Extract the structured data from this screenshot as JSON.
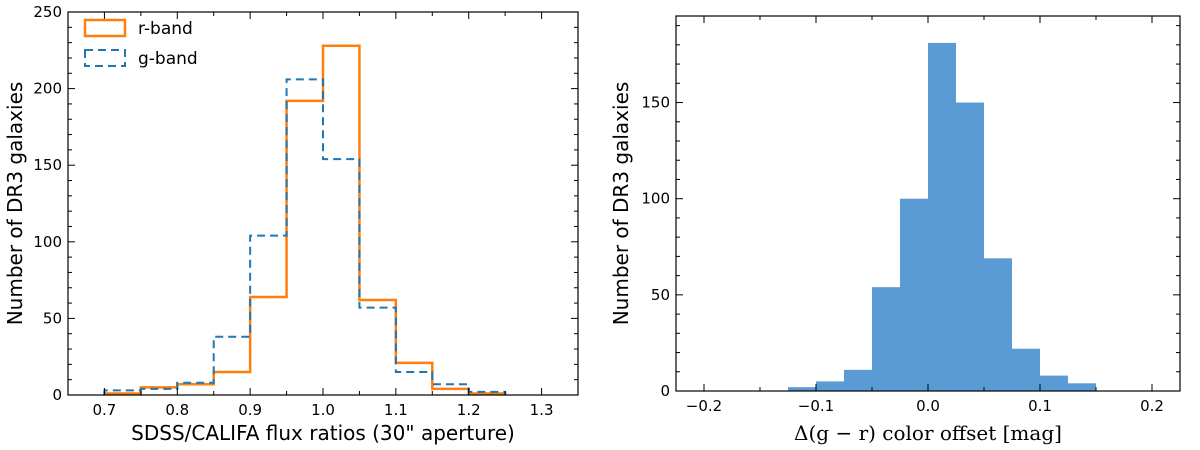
{
  "chart_data": [
    {
      "type": "histogram",
      "xlabel": "SDSS/CALIFA flux ratios (30\" aperture)",
      "ylabel": "Number of DR3 galaxies",
      "xlim": [
        0.65,
        1.35
      ],
      "ylim": [
        0,
        250
      ],
      "xticks": [
        0.7,
        0.8,
        0.9,
        1.0,
        1.1,
        1.2,
        1.3
      ],
      "xtick_labels": [
        "0.7",
        "0.8",
        "0.9",
        "1.0",
        "1.1",
        "1.2",
        "1.3"
      ],
      "yticks": [
        0,
        50,
        100,
        150,
        200,
        250
      ],
      "ytick_labels": [
        "0",
        "50",
        "100",
        "150",
        "200",
        "250"
      ],
      "legend_position": "top-left",
      "series": [
        {
          "name": "r-band",
          "style": "solid",
          "color": "#ff7f0e",
          "bin_edges": [
            0.7,
            0.75,
            0.8,
            0.85,
            0.9,
            0.95,
            1.0,
            1.05,
            1.1,
            1.15,
            1.2,
            1.25
          ],
          "counts": [
            1,
            5,
            7,
            15,
            64,
            192,
            228,
            62,
            21,
            4,
            1
          ]
        },
        {
          "name": "g-band",
          "style": "dashed",
          "color": "#1f77b4",
          "bin_edges": [
            0.7,
            0.75,
            0.8,
            0.85,
            0.9,
            0.95,
            1.0,
            1.05,
            1.1,
            1.15,
            1.2,
            1.25
          ],
          "counts": [
            3,
            4,
            8,
            38,
            104,
            206,
            154,
            57,
            15,
            7,
            2
          ]
        }
      ]
    },
    {
      "type": "histogram",
      "xlabel": "Δ(g − r) color offset [mag]",
      "ylabel": "Number of DR3 galaxies",
      "xlim": [
        -0.225,
        0.225
      ],
      "ylim": [
        0,
        195
      ],
      "xticks": [
        -0.2,
        -0.1,
        0.0,
        0.1,
        0.2
      ],
      "xtick_labels": [
        "−0.2",
        "−0.1",
        "0.0",
        "0.1",
        "0.2"
      ],
      "yticks": [
        0,
        50,
        100,
        150
      ],
      "ytick_labels": [
        "0",
        "50",
        "100",
        "150"
      ],
      "series": [
        {
          "color": "#5b9bd5",
          "style": "filled",
          "bin_edges": [
            -0.125,
            -0.1,
            -0.075,
            -0.05,
            -0.025,
            0.0,
            0.025,
            0.05,
            0.075,
            0.1,
            0.125,
            0.15
          ],
          "counts": [
            2,
            5,
            11,
            54,
            100,
            181,
            150,
            69,
            22,
            8,
            4
          ]
        }
      ]
    }
  ]
}
